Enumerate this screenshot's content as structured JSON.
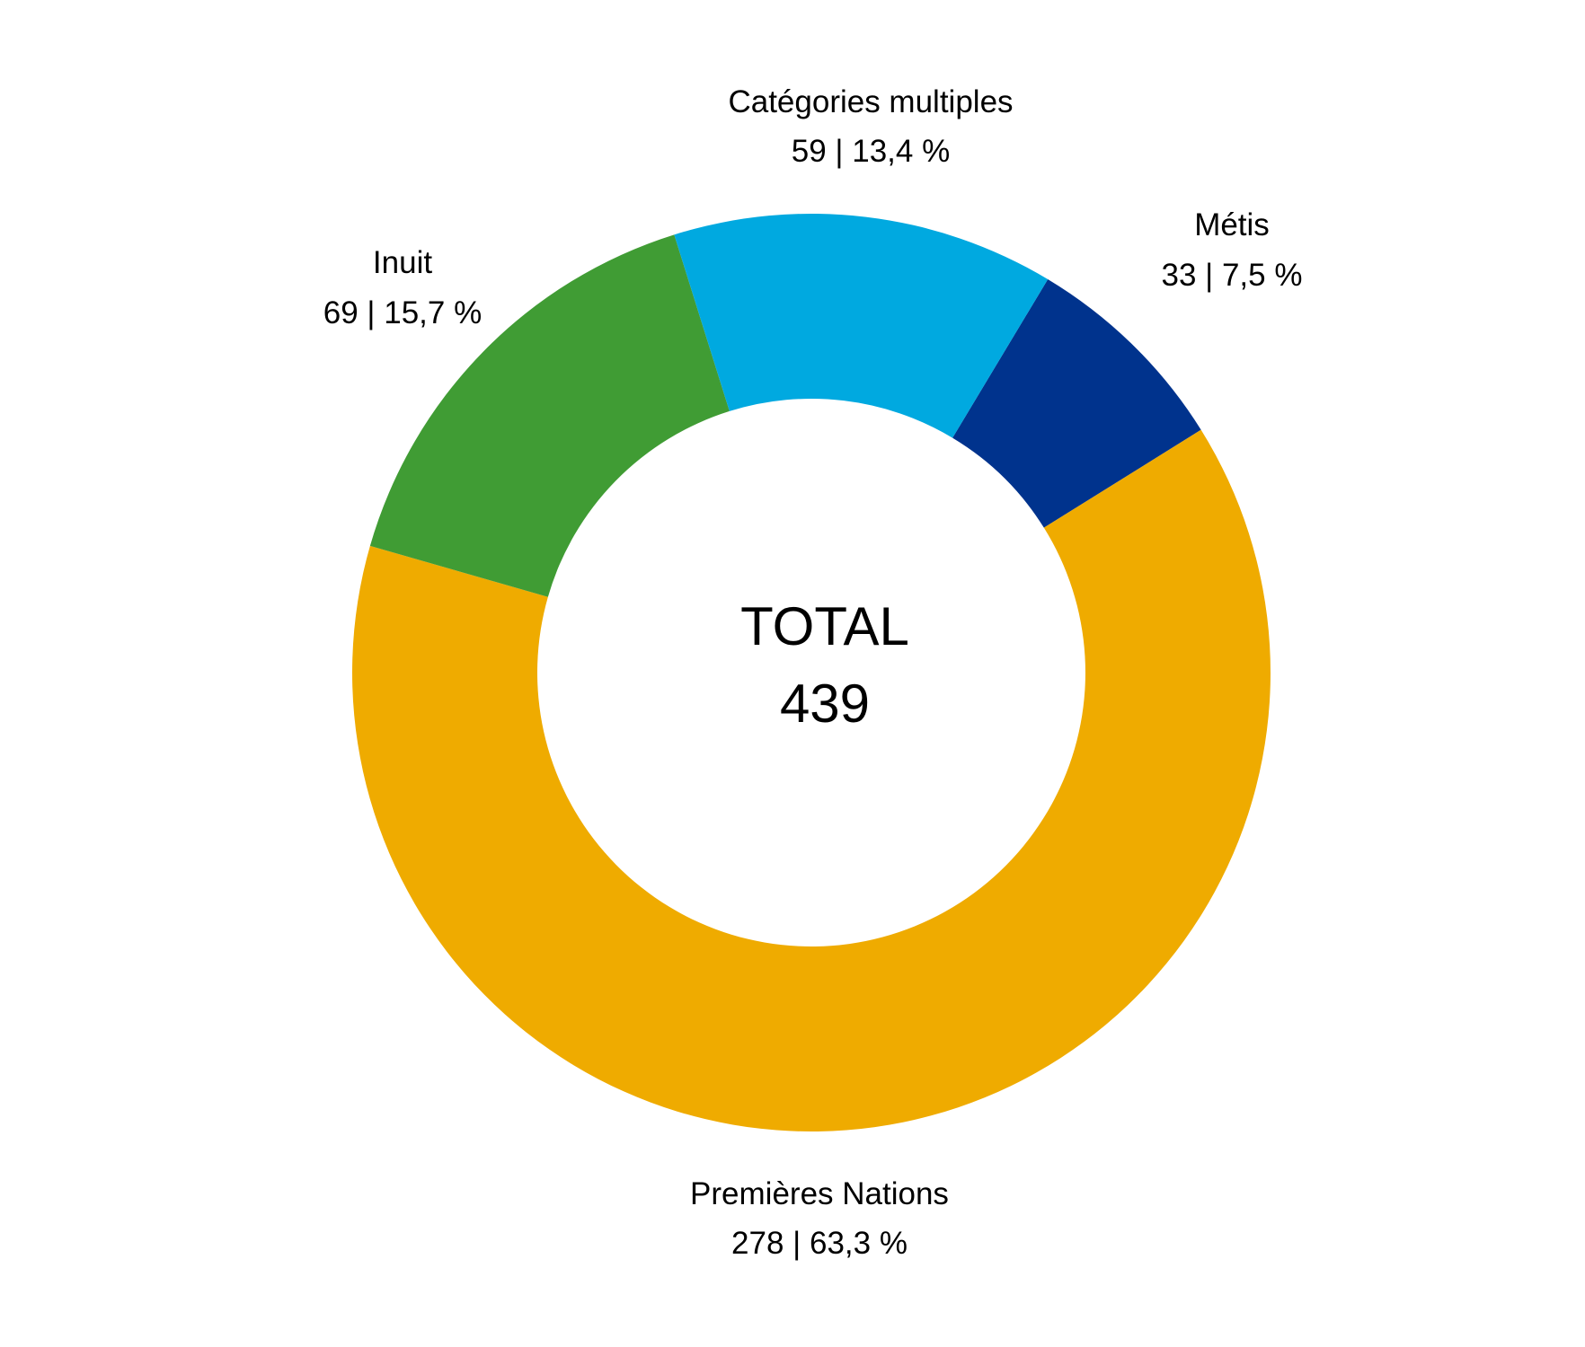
{
  "chart_data": {
    "type": "pie",
    "variant": "donut",
    "center_label": {
      "title": "TOTAL",
      "value": "439"
    },
    "slices": [
      {
        "name": "Métis",
        "value": 33,
        "percent_label": "33 | 7,5 %",
        "color": "#00338D"
      },
      {
        "name": "Premières Nations",
        "value": 278,
        "percent_label": "278 | 63,3 %",
        "color": "#EFAB00"
      },
      {
        "name": "Inuit",
        "value": 69,
        "percent_label": "69 | 15,7 %",
        "color": "#409C34"
      },
      {
        "name": "Catégories multiples",
        "value": 59,
        "percent_label": "59 | 13,4 %",
        "color": "#00A9E0"
      }
    ],
    "legend": "none, labels outside slices"
  }
}
